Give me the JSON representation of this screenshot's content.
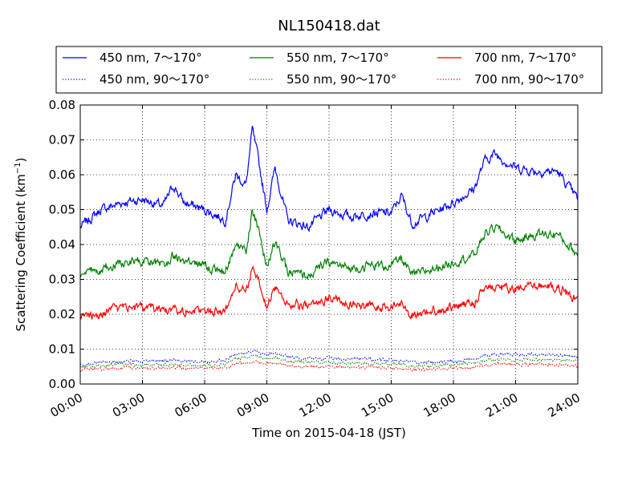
{
  "chart_data": {
    "type": "line",
    "title": "NL150418.dat",
    "xlabel": "Time on 2015-04-18 (JST)",
    "ylabel_main": "Scattering Coefficient (km",
    "ylabel_sup": "−1",
    "ylabel_close": ")",
    "x_ticks": [
      "00:00",
      "03:00",
      "06:00",
      "09:00",
      "12:00",
      "15:00",
      "18:00",
      "21:00",
      "24:00"
    ],
    "xlim_hours": [
      0,
      24
    ],
    "ylim": [
      0,
      0.08
    ],
    "y_ticks": [
      "0.00",
      "0.01",
      "0.02",
      "0.03",
      "0.04",
      "0.05",
      "0.06",
      "0.07",
      "0.08"
    ],
    "y_tick_values": [
      0,
      0.01,
      0.02,
      0.03,
      0.04,
      0.05,
      0.06,
      0.07,
      0.08
    ],
    "grid": true,
    "legend_position": "above plot, 3 columns",
    "x_hours": [
      0,
      1,
      2,
      3,
      4,
      4.5,
      5,
      6,
      7,
      7.5,
      8,
      8.3,
      8.6,
      9,
      9.4,
      10,
      11,
      12,
      13,
      14,
      15,
      15.5,
      16,
      17,
      18,
      19,
      19.5,
      20,
      21,
      22,
      23,
      24
    ],
    "series": [
      {
        "name": "450 nm, 7～170°",
        "style": "solid",
        "color": "#0000ff",
        "values": [
          0.045,
          0.05,
          0.052,
          0.053,
          0.051,
          0.057,
          0.052,
          0.05,
          0.047,
          0.06,
          0.057,
          0.073,
          0.064,
          0.05,
          0.062,
          0.047,
          0.045,
          0.05,
          0.048,
          0.049,
          0.049,
          0.054,
          0.046,
          0.049,
          0.052,
          0.056,
          0.064,
          0.066,
          0.062,
          0.061,
          0.061,
          0.053
        ]
      },
      {
        "name": "450 nm, 90～170°",
        "style": "dotted",
        "color": "#0000ff",
        "values": [
          0.0055,
          0.0062,
          0.0065,
          0.0066,
          0.0066,
          0.0068,
          0.0066,
          0.0065,
          0.0068,
          0.0085,
          0.009,
          0.0095,
          0.0092,
          0.0085,
          0.009,
          0.0078,
          0.0072,
          0.0075,
          0.0072,
          0.007,
          0.0068,
          0.0068,
          0.0062,
          0.0062,
          0.0065,
          0.0072,
          0.0082,
          0.0085,
          0.0085,
          0.0085,
          0.0083,
          0.0078
        ]
      },
      {
        "name": "550 nm, 7～170°",
        "style": "solid",
        "color": "#008000",
        "values": [
          0.031,
          0.033,
          0.035,
          0.035,
          0.034,
          0.037,
          0.035,
          0.034,
          0.032,
          0.04,
          0.038,
          0.05,
          0.044,
          0.033,
          0.041,
          0.032,
          0.031,
          0.035,
          0.033,
          0.034,
          0.034,
          0.036,
          0.031,
          0.033,
          0.035,
          0.037,
          0.043,
          0.045,
          0.041,
          0.043,
          0.043,
          0.037
        ]
      },
      {
        "name": "550 nm, 90～170°",
        "style": "dotted",
        "color": "#008000",
        "values": [
          0.0048,
          0.0052,
          0.0055,
          0.0056,
          0.0055,
          0.0057,
          0.0055,
          0.0055,
          0.0058,
          0.0072,
          0.0076,
          0.008,
          0.0078,
          0.0072,
          0.0076,
          0.0066,
          0.0061,
          0.0063,
          0.0061,
          0.0059,
          0.0057,
          0.0057,
          0.0052,
          0.0052,
          0.0055,
          0.006,
          0.0068,
          0.007,
          0.007,
          0.007,
          0.0069,
          0.0065
        ]
      },
      {
        "name": "700 nm, 7～170°",
        "style": "solid",
        "color": "#ff0000",
        "values": [
          0.019,
          0.02,
          0.022,
          0.022,
          0.021,
          0.022,
          0.021,
          0.021,
          0.021,
          0.028,
          0.027,
          0.033,
          0.029,
          0.022,
          0.028,
          0.023,
          0.022,
          0.025,
          0.023,
          0.022,
          0.022,
          0.023,
          0.02,
          0.021,
          0.022,
          0.023,
          0.028,
          0.028,
          0.027,
          0.028,
          0.028,
          0.024
        ]
      },
      {
        "name": "700 nm, 90～170°",
        "style": "dotted",
        "color": "#ff0000",
        "values": [
          0.004,
          0.0043,
          0.0045,
          0.0046,
          0.0045,
          0.0046,
          0.0045,
          0.0045,
          0.0047,
          0.0058,
          0.0061,
          0.0064,
          0.0062,
          0.0058,
          0.0061,
          0.0053,
          0.0049,
          0.0051,
          0.0049,
          0.0048,
          0.0046,
          0.0046,
          0.0042,
          0.0042,
          0.0045,
          0.0048,
          0.0055,
          0.0057,
          0.0057,
          0.0057,
          0.0056,
          0.0052
        ]
      }
    ]
  }
}
